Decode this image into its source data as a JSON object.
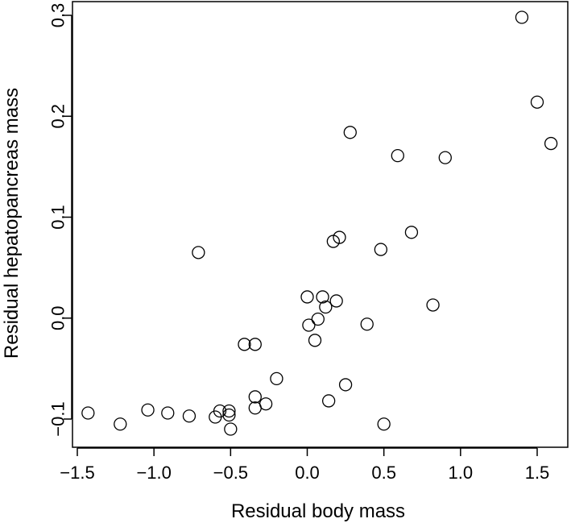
{
  "chart_data": {
    "type": "scatter",
    "title": "",
    "xlabel": "Residual body mass",
    "ylabel": "Residual hepatopancreas mass",
    "xlim": [
      -1.5,
      1.6
    ],
    "ylim": [
      -0.125,
      0.31
    ],
    "grid": false,
    "x_ticks": [
      -1.5,
      -1.0,
      -0.5,
      0.0,
      0.5,
      1.0,
      1.5
    ],
    "x_tick_labels": [
      "−1.5",
      "−1.0",
      "−0.5",
      "0.0",
      "0.5",
      "1.0",
      "1.5"
    ],
    "y_ticks": [
      -0.1,
      0.0,
      0.1,
      0.2,
      0.3
    ],
    "y_tick_labels": [
      "−0.1",
      "0.0",
      "0.1",
      "0.2",
      "0.3"
    ],
    "series": [
      {
        "marker": "open-circle",
        "color": "#000000",
        "points": [
          {
            "x": -1.43,
            "y": -0.094
          },
          {
            "x": -1.22,
            "y": -0.105
          },
          {
            "x": -1.04,
            "y": -0.091
          },
          {
            "x": -0.91,
            "y": -0.094
          },
          {
            "x": -0.77,
            "y": -0.097
          },
          {
            "x": -0.71,
            "y": 0.065
          },
          {
            "x": -0.6,
            "y": -0.098
          },
          {
            "x": -0.57,
            "y": -0.092
          },
          {
            "x": -0.51,
            "y": -0.092
          },
          {
            "x": -0.51,
            "y": -0.096
          },
          {
            "x": -0.5,
            "y": -0.11
          },
          {
            "x": -0.41,
            "y": -0.026
          },
          {
            "x": -0.34,
            "y": -0.026
          },
          {
            "x": -0.34,
            "y": -0.078
          },
          {
            "x": -0.34,
            "y": -0.089
          },
          {
            "x": -0.27,
            "y": -0.085
          },
          {
            "x": -0.2,
            "y": -0.06
          },
          {
            "x": 0.0,
            "y": 0.021
          },
          {
            "x": 0.01,
            "y": -0.007
          },
          {
            "x": 0.05,
            "y": -0.022
          },
          {
            "x": 0.07,
            "y": -0.001
          },
          {
            "x": 0.1,
            "y": 0.021
          },
          {
            "x": 0.12,
            "y": 0.011
          },
          {
            "x": 0.14,
            "y": -0.082
          },
          {
            "x": 0.17,
            "y": 0.076
          },
          {
            "x": 0.19,
            "y": 0.017
          },
          {
            "x": 0.21,
            "y": 0.08
          },
          {
            "x": 0.25,
            "y": -0.066
          },
          {
            "x": 0.28,
            "y": 0.184
          },
          {
            "x": 0.39,
            "y": -0.006
          },
          {
            "x": 0.48,
            "y": 0.068
          },
          {
            "x": 0.5,
            "y": -0.105
          },
          {
            "x": 0.59,
            "y": 0.161
          },
          {
            "x": 0.68,
            "y": 0.085
          },
          {
            "x": 0.82,
            "y": 0.013
          },
          {
            "x": 0.9,
            "y": 0.159
          },
          {
            "x": 1.4,
            "y": 0.298
          },
          {
            "x": 1.5,
            "y": 0.214
          },
          {
            "x": 1.59,
            "y": 0.173
          }
        ]
      }
    ]
  }
}
